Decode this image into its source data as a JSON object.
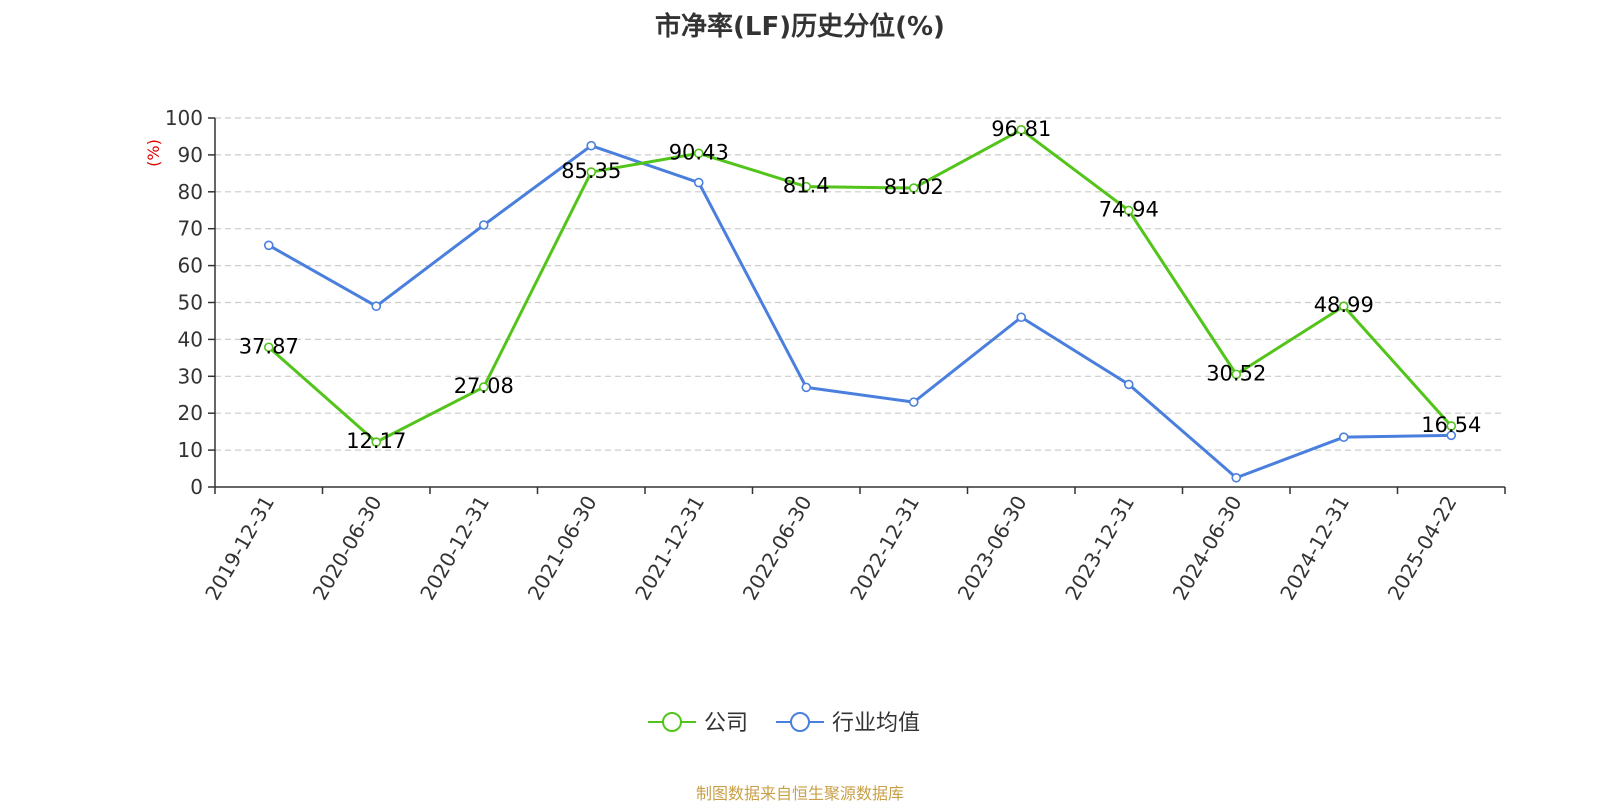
{
  "chart_data": {
    "type": "line",
    "title": "市净率(LF)历史分位(%)",
    "ylabel": "(%)",
    "ylim": [
      0,
      100
    ],
    "yticks": [
      0,
      10,
      20,
      30,
      40,
      50,
      60,
      70,
      80,
      90,
      100
    ],
    "grid": "horizontal-dashed",
    "legend_position": "bottom-center",
    "categories": [
      "2019-12-31",
      "2020-06-30",
      "2020-12-31",
      "2021-06-30",
      "2021-12-31",
      "2022-06-30",
      "2022-12-31",
      "2023-06-30",
      "2023-12-31",
      "2024-06-30",
      "2024-12-31",
      "2025-04-22"
    ],
    "series": [
      {
        "name": "公司",
        "color": "#52c41a",
        "show_labels": true,
        "values": [
          37.87,
          12.17,
          27.08,
          85.35,
          90.43,
          81.4,
          81.02,
          96.81,
          74.94,
          30.52,
          48.99,
          16.54
        ]
      },
      {
        "name": "行业均值",
        "color": "#4a7fdd",
        "show_labels": false,
        "values": [
          65.5,
          49,
          71,
          92.5,
          82.5,
          27,
          23,
          46,
          27.8,
          2.5,
          13.5,
          14
        ]
      }
    ]
  },
  "colors": {
    "ylabel": "#e00000",
    "source": "#c8a04a"
  },
  "source_note": "制图数据来自恒生聚源数据库"
}
